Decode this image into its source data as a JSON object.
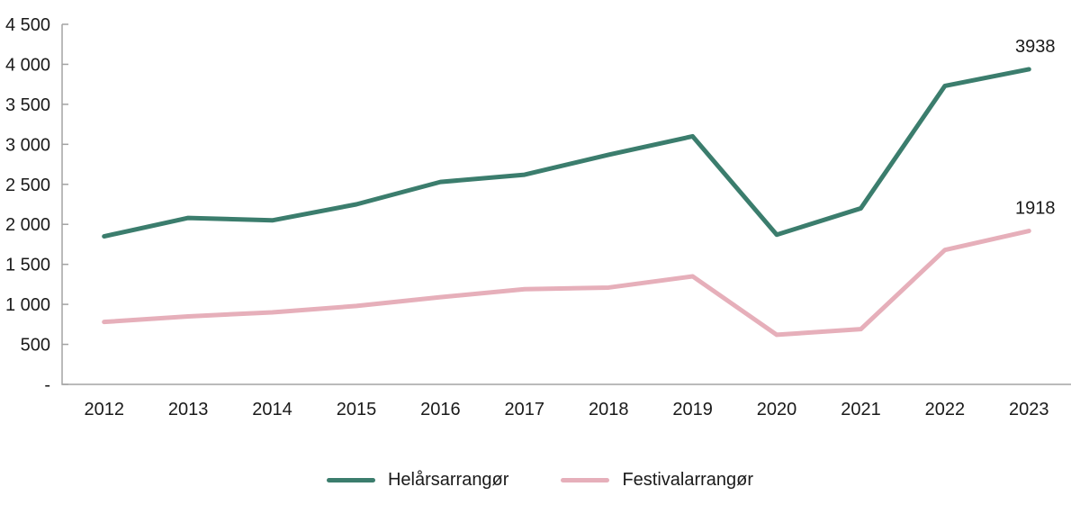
{
  "chart_data": {
    "type": "line",
    "categories": [
      "2012",
      "2013",
      "2014",
      "2015",
      "2016",
      "2017",
      "2018",
      "2019",
      "2020",
      "2021",
      "2022",
      "2023"
    ],
    "series": [
      {
        "name": "Helårsarrangør",
        "color": "#3B7D6D",
        "values": [
          1850,
          2080,
          2050,
          2250,
          2530,
          2620,
          2870,
          3100,
          1870,
          2200,
          3730,
          3938
        ],
        "end_label": "3938"
      },
      {
        "name": "Festivalarrangør",
        "color": "#E6AFBA",
        "values": [
          780,
          850,
          900,
          980,
          1090,
          1190,
          1210,
          1350,
          620,
          690,
          1680,
          1918
        ],
        "end_label": "1918"
      }
    ],
    "xlabel": "",
    "ylabel": "",
    "ylim": [
      0,
      4500
    ],
    "y_ticks": [
      {
        "value": 4500,
        "label": "4 500"
      },
      {
        "value": 4000,
        "label": "4 000"
      },
      {
        "value": 3500,
        "label": "3 500"
      },
      {
        "value": 3000,
        "label": "3 000"
      },
      {
        "value": 2500,
        "label": "2 500"
      },
      {
        "value": 2000,
        "label": "2 000"
      },
      {
        "value": 1500,
        "label": "1 500"
      },
      {
        "value": 1000,
        "label": "1 000"
      },
      {
        "value": 500,
        "label": "500"
      },
      {
        "value": 0,
        "label": "-"
      }
    ],
    "grid": false,
    "legend_position": "bottom",
    "axis_color": "#A3A3A3",
    "text_color": "#1A1A1A"
  }
}
